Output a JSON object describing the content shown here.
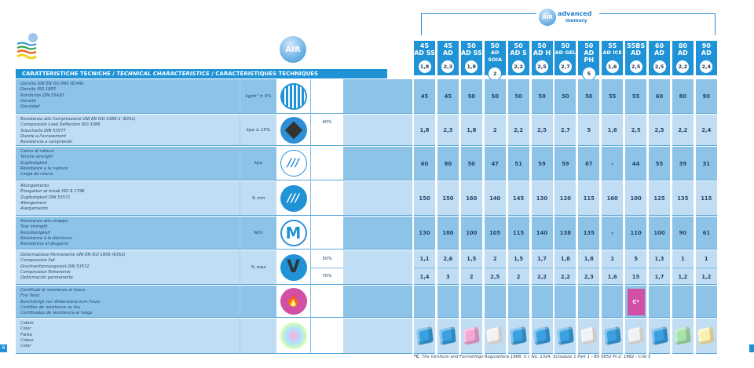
{
  "header": {
    "title_it": "CARATTERISTICHE TECNICHE /",
    "title_en": "TECHNICAL CHARACTERISTICS",
    "title_fr": "/ CARACTÉRISTIQUES TECHNIQUES",
    "logo_brand": "AIR",
    "logo_line": "advanced",
    "logo_sub": "memory"
  },
  "columns": [
    {
      "l1": "45",
      "l2": "AD SS",
      "d": "1,8",
      "color": "#3aa0e0"
    },
    {
      "l1": "45",
      "l2": "AD",
      "d": "2,3",
      "color": "#3aa0e0"
    },
    {
      "l1": "50",
      "l2": "AD SS",
      "d": "1,8",
      "color": "#f2a9d6"
    },
    {
      "l1": "50",
      "l2": "AD SOIA",
      "d": "2",
      "color": "#f1f1f1"
    },
    {
      "l1": "50",
      "l2": "AD S",
      "d": "2,2",
      "color": "#3aa0e0"
    },
    {
      "l1": "50",
      "l2": "AD H",
      "d": "2,5",
      "color": "#3aa0e0"
    },
    {
      "l1": "50",
      "l2": "AD GEL",
      "d": "2,7",
      "color": "#3aa0e0"
    },
    {
      "l1": "50",
      "l2": "AD PH",
      "d": "5",
      "color": "#f1f1f1"
    },
    {
      "l1": "55",
      "l2": "AD ICE",
      "d": "1,6",
      "color": "#3aa0e0"
    },
    {
      "l1": "55BS",
      "l2": "AD",
      "d": "2,5",
      "color": "#f1f1f1"
    },
    {
      "l1": "60",
      "l2": "AD",
      "d": "2,5",
      "color": "#3aa0e0"
    },
    {
      "l1": "80",
      "l2": "AD",
      "d": "2,2",
      "color": "#a6e3a8"
    },
    {
      "l1": "90",
      "l2": "AD",
      "d": "2,4",
      "color": "#fbeeb0"
    }
  ],
  "rows": [
    {
      "shade": "dark",
      "icon": "density-sphere-icon",
      "labels": [
        "Densità UNI EN ISO 845 (6349)",
        "Density ISO 1855",
        "Rohdichte DIN 53420",
        "Densité",
        "Densidad"
      ],
      "unit": "kg/m³ ± 5%",
      "sub": [],
      "values": [
        [
          "45",
          "45",
          "50",
          "50",
          "50",
          "50",
          "50",
          "50",
          "55",
          "55",
          "60",
          "80",
          "90"
        ]
      ]
    },
    {
      "shade": "light",
      "icon": "compression-cube-icon",
      "labels": [
        "Resistenza alla Compressione UNI EN ISO 3386-1 (6351)",
        "Compression Load Deflection ISO 3386",
        "Staucharte DIN 53577",
        "Dureté a l'ecrasement",
        "Resistencia a compresión"
      ],
      "unit": "kpa ± 15%",
      "sub": [
        "40%"
      ],
      "values": [
        [
          "1,8",
          "2,3",
          "1,8",
          "2",
          "2,2",
          "2,5",
          "2,7",
          "5",
          "1,6",
          "2,5",
          "2,5",
          "2,2",
          "2,4"
        ]
      ]
    },
    {
      "shade": "dark",
      "icon": "tensile-strength-icon",
      "labels": [
        "Carico di rottura",
        "Tensile strength",
        "Zugfestigkeit",
        "Résistance a la rupture",
        "Carga de rotura"
      ],
      "unit": "kpa",
      "sub": [],
      "values": [
        [
          "60",
          "80",
          "50",
          "47",
          "51",
          "59",
          "59",
          "67",
          "–",
          "44",
          "55",
          "39",
          "31"
        ]
      ]
    },
    {
      "shade": "light",
      "icon": "elongation-icon",
      "labels": [
        "Allungamento",
        "Elongation at break ISO R 1798",
        "Zugfestigkeit DIN 53571",
        "Allongement",
        "Alargamiento"
      ],
      "unit": "% min",
      "sub": [],
      "values": [
        [
          "150",
          "150",
          "160",
          "140",
          "145",
          "130",
          "120",
          "115",
          "160",
          "100",
          "125",
          "135",
          "115"
        ]
      ]
    },
    {
      "shade": "dark",
      "icon": "tear-strength-icon",
      "labels": [
        "Resistenza allo strappo",
        "Tear strength",
        "Reissfestigkeit",
        "Résistance à la déchirure",
        "Resistencia al desgarre"
      ],
      "unit": "N/m",
      "sub": [],
      "values": [
        [
          "130",
          "180",
          "100",
          "105",
          "115",
          "140",
          "138",
          "135",
          "–",
          "110",
          "100",
          "90",
          "61"
        ]
      ]
    },
    {
      "shade": "light",
      "icon": "compression-set-icon",
      "labels": [
        "Deformazione Permanente UNI EN ISO 1856 (6352)",
        "Compression Set",
        "Druckverformungsrest DIN 53572",
        "Compression Rimanente",
        "Deformación permanente"
      ],
      "unit": "% max",
      "sub": [
        "50%",
        "70%"
      ],
      "values": [
        [
          "1,1",
          "2,6",
          "1,5",
          "2",
          "1,5",
          "1,7",
          "1,8",
          "1,8",
          "1",
          "5",
          "1,3",
          "1",
          "1"
        ],
        [
          "1,4",
          "3",
          "2",
          "2,5",
          "2",
          "2,2",
          "2,2",
          "2,3",
          "1,6",
          "15",
          "1,7",
          "1,2",
          "1,2"
        ]
      ]
    },
    {
      "shade": "dark",
      "icon": "fire-extinguisher-icon",
      "labels": [
        "Certificati di resistenza al fuoco",
        "Fire Tests",
        "Bescheinigt von Widerstand zum Feuer",
        "Certifies de resistance au feu",
        "Certificados de resistencia al fuego"
      ],
      "unit": "",
      "sub": [],
      "values": [
        [
          "",
          "",
          "",
          "",
          "",
          "",
          "",
          "",
          "",
          "C*",
          "",
          "",
          ""
        ]
      ]
    },
    {
      "shade": "light",
      "icon": "color-sphere-icon",
      "labels": [
        "Colore",
        "Color",
        "Farbe",
        "Coleur",
        "Color"
      ],
      "unit": "",
      "sub": [],
      "values": []
    }
  ],
  "footnote_mark": "*C",
  "footnote": "The furniture and Furnishings Regulations 1988, S.I. No. 1324, Schedule 1 Part 1 - BS 5852 Pt 2: 1982 - Crib 5",
  "page_number": "8",
  "colors": {
    "accent": "#1f93d6",
    "dark_row": "#8ec3e8",
    "light_row": "#c0ddf3",
    "fire_badge": "#d24fa6"
  }
}
